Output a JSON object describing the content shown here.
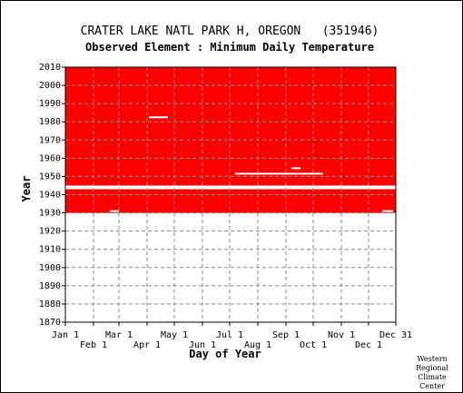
{
  "chart_data": {
    "type": "heatmap",
    "title": "CRATER LAKE NATL PARK H, OREGON   (351946)",
    "subtitle": "Observed Element : Minimum Daily Temperature",
    "xlabel": "Day of Year",
    "ylabel": "Year",
    "xlim": [
      1,
      365
    ],
    "ylim": [
      1870,
      2010
    ],
    "grid": true,
    "x_ticks_top_row": [
      "Jan 1",
      "Mar 1",
      "May 1",
      "Jul 1",
      "Sep 1",
      "Nov 1",
      "Dec 31"
    ],
    "x_ticks_bottom_row": [
      "Feb 1",
      "Apr 1",
      "Jun 1",
      "Aug 1",
      "Oct 1",
      "Dec 1"
    ],
    "y_ticks": [
      "2010",
      "2000",
      "1990",
      "1980",
      "1970",
      "1960",
      "1950",
      "1940",
      "1930",
      "1920",
      "1910",
      "1900",
      "1890",
      "1880",
      "1870"
    ],
    "data_color": "#ff0000",
    "coverage": [
      {
        "start_year": 1945,
        "end_year": 2010,
        "start_day": 1,
        "end_day": 365,
        "status": "data present"
      },
      {
        "start_year": 1930,
        "end_year": 1943,
        "start_day": 1,
        "end_day": 365,
        "status": "data present"
      },
      {
        "start_year": 1943,
        "end_year": 1945,
        "start_day": 1,
        "end_day": 365,
        "status": "missing"
      }
    ],
    "missing_segments": [
      {
        "year": 1982.5,
        "start_day": 93,
        "end_day": 114
      },
      {
        "year": 1931,
        "start_day": 50,
        "end_day": 60
      },
      {
        "year": 1931,
        "start_day": 350,
        "end_day": 362
      },
      {
        "year": 1951.5,
        "start_day": 188,
        "end_day": 285
      },
      {
        "year": 1954.5,
        "start_day": 250,
        "end_day": 260
      }
    ],
    "credit": [
      "Western",
      "Regional",
      "Climate",
      "Center"
    ]
  }
}
